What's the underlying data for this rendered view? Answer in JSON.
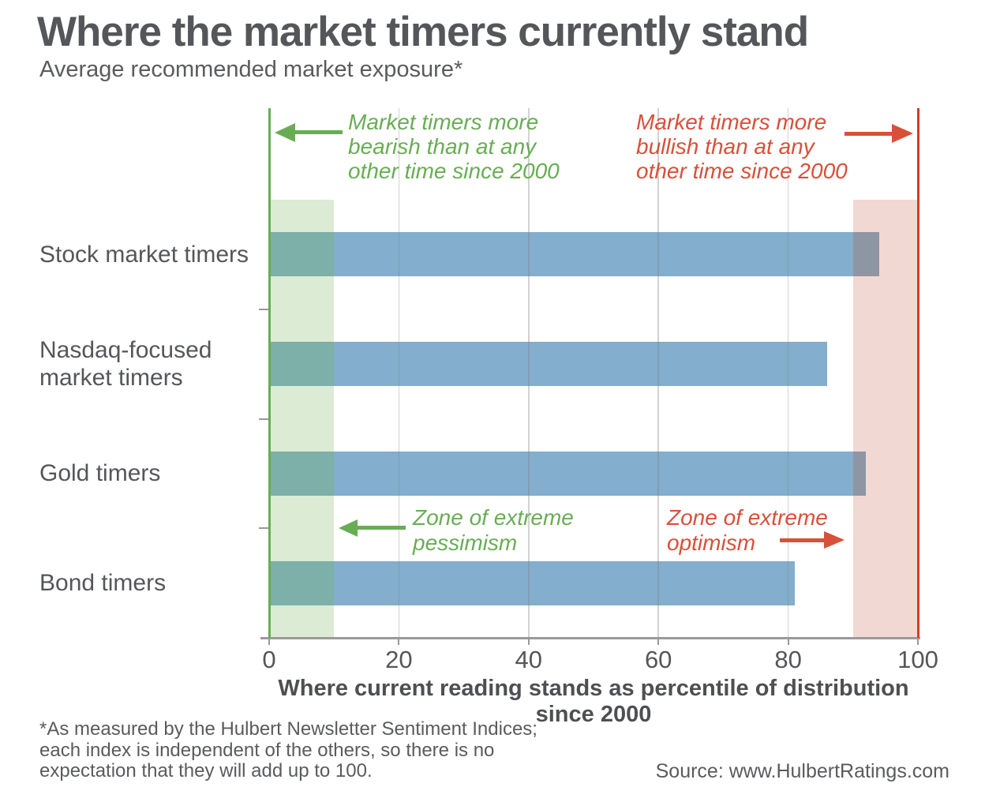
{
  "header": {
    "title": "Where the market timers currently stand",
    "subtitle": "Average recommended market exposure*"
  },
  "annotations": {
    "bearish": {
      "lines": [
        "Market timers more",
        "bearish than at any",
        "other time since 2000"
      ]
    },
    "bullish": {
      "lines": [
        "Market timers more",
        "bullish than at any",
        "other time since 2000"
      ]
    },
    "pessimism": {
      "lines": [
        "Zone of extreme",
        "pessimism"
      ]
    },
    "optimism": {
      "lines": [
        "Zone of extreme",
        "optimism"
      ]
    }
  },
  "chart_data": {
    "type": "bar",
    "orientation": "horizontal",
    "title": "Where the market timers currently stand",
    "subtitle": "Average recommended market exposure*",
    "categories": [
      "Stock market timers",
      "Nasdaq-focused market timers",
      "Gold timers",
      "Bond timers"
    ],
    "values": [
      94,
      86,
      92,
      81
    ],
    "xlabel": "Where current reading stands as percentile of distribution since 2000",
    "xlim": [
      0,
      100
    ],
    "xticks": [
      0,
      20,
      40,
      60,
      80,
      100
    ],
    "grid": "vertical",
    "legend": "none",
    "bands": [
      {
        "name": "zone of extreme pessimism",
        "from": 0,
        "to": 10,
        "color_key": "pessimism_band"
      },
      {
        "name": "zone of extreme optimism",
        "from": 90,
        "to": 100,
        "color_key": "optimism_band"
      }
    ],
    "reference_lines": [
      {
        "at": 0,
        "color_key": "bearish_accent"
      },
      {
        "at": 100,
        "color_key": "red_line"
      }
    ]
  },
  "footnote": {
    "lines": [
      "*As measured by the Hulbert Newsletter Sentiment Indices;",
      "each index is independent of the others, so there is no",
      "expectation that they will add up to 100."
    ]
  },
  "source": {
    "text": "Source: www.HulbertRatings.com"
  },
  "colors": {
    "bar_blue": "#83aecd",
    "bar_over_green": "#7cb0a9",
    "bar_over_pink": "#8e96a4",
    "pessimism_band": "#dcebd3",
    "optimism_band": "#f2d8d2",
    "bearish_accent": "#68ad55",
    "bullish_accent": "#d8503a",
    "red_line": "#d63b2a",
    "grid_line": "#cccccc",
    "axis_line": "#9a9a9a",
    "text_dark": "#57585a"
  }
}
